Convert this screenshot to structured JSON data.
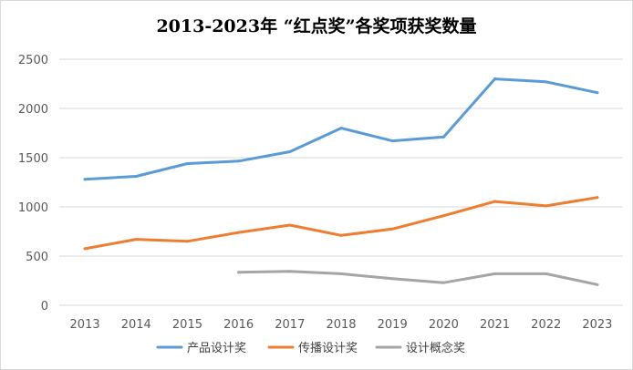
{
  "chart_data": {
    "type": "line",
    "title": "2013-2023年 “红点奖”各奖项获奖数量",
    "xlabel": "",
    "ylabel": "",
    "categories": [
      "2013",
      "2014",
      "2015",
      "2016",
      "2017",
      "2018",
      "2019",
      "2020",
      "2021",
      "2022",
      "2023"
    ],
    "ylim": [
      0,
      2500
    ],
    "yticks": [
      0,
      500,
      1000,
      1500,
      2000,
      2500
    ],
    "grid": true,
    "legend_position": "bottom",
    "series": [
      {
        "name": "产品设计奖",
        "color": "#5B9BD5",
        "values": [
          1280,
          1310,
          1440,
          1465,
          1560,
          1800,
          1670,
          1710,
          2300,
          2270,
          2160
        ]
      },
      {
        "name": "传播设计奖",
        "color": "#ED7D31",
        "values": [
          575,
          670,
          650,
          740,
          815,
          710,
          775,
          910,
          1055,
          1010,
          1095
        ]
      },
      {
        "name": "设计概念奖",
        "color": "#A5A5A5",
        "values": [
          null,
          null,
          null,
          335,
          345,
          320,
          270,
          230,
          320,
          320,
          210
        ]
      }
    ]
  }
}
